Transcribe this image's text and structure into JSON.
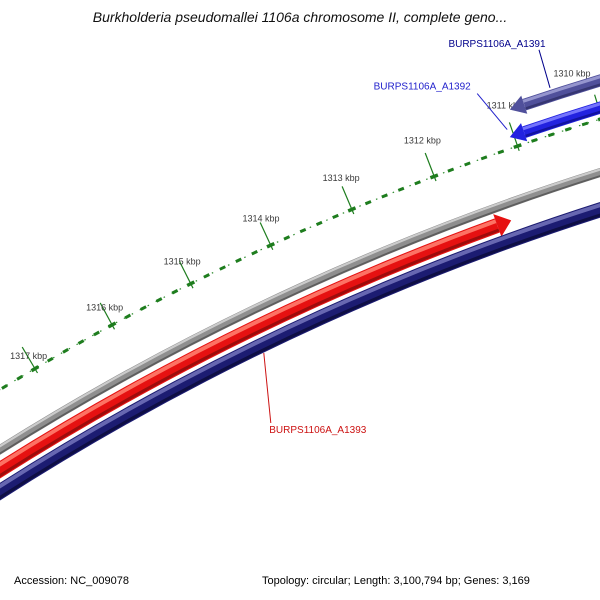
{
  "title": "Burkholderia pseudomallei 1106a chromosome II, complete geno...",
  "status_bar": {
    "accession": "Accession: NC_009078",
    "topology": "Topology: circular; Length: 3,100,794 bp; Genes: 3,169"
  },
  "chart_data": {
    "type": "circular-genome-map",
    "genome": {
      "accession": "NC_009078",
      "topology": "circular",
      "length_bp": 3100794,
      "genes": 3169
    },
    "visible_range_kbp": [
      1310.0,
      1317.8
    ],
    "ruler": {
      "unit": "kbp",
      "tick_positions_kbp": [
        1310,
        1311,
        1312,
        1313,
        1314,
        1315,
        1316,
        1317
      ],
      "tick_labels": [
        "1310 kbp",
        "1311 kbp",
        "1312 kbp",
        "1313 kbp",
        "1314 kbp",
        "1315 kbp",
        "1316 kbp",
        "1317 kbp"
      ],
      "minor_tick_interval_kbp": 0.2,
      "tick_color": "#1e7d1e",
      "dot_color": "#2e8b2e",
      "label_color": "#3a3a3a"
    },
    "backbone": {
      "color": "#8f8f8f",
      "highlight": "#cfcfcf",
      "shadow": "#595959"
    },
    "features": [
      {
        "id": "BURPS1106A_A1391",
        "ring": "outer-2",
        "start_kbp": 1309.4,
        "end_kbp": 1310.95,
        "strand": "forward",
        "arrow": "end",
        "labeled": true,
        "color": "#50509b",
        "highlight": "#9c9cd4",
        "shadow": "#30306a",
        "label_color": "#00008b"
      },
      {
        "id": "BURPS1106A_A1392",
        "ring": "outer-1",
        "start_kbp": 1309.5,
        "end_kbp": 1311.05,
        "strand": "forward",
        "arrow": "end",
        "labeled": true,
        "color": "#2222e0",
        "highlight": "#7d7dff",
        "shadow": "#0f0f94",
        "label_color": "#2222cc"
      },
      {
        "id": "BURPS1106A_A1393",
        "ring": "inner-1",
        "start_kbp": 1311.35,
        "end_kbp": 1318.3,
        "strand": "reverse",
        "arrow": "start",
        "labeled": true,
        "color": "#e61111",
        "highlight": "#ff7d6e",
        "shadow": "#8f0c0c",
        "label_color": "#cc1111"
      },
      {
        "id": "",
        "ring": "inner-2",
        "start_kbp": 1309.3,
        "end_kbp": 1318.3,
        "strand": null,
        "arrow": "none",
        "labeled": false,
        "color": "#1c1c72",
        "highlight": "#7070b8",
        "shadow": "#0c0c3c",
        "label_color": null
      }
    ]
  }
}
